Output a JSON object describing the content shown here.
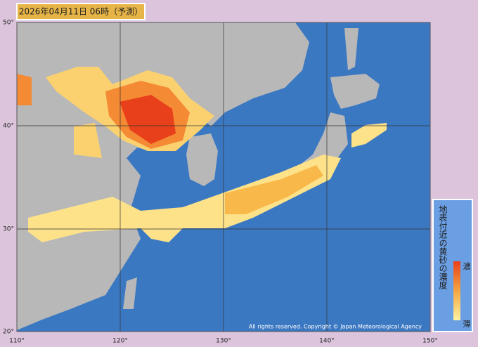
{
  "header": {
    "title": "2026年04月11日 06時（予測）"
  },
  "map": {
    "lat_labels": [
      "50°",
      "40°",
      "30°",
      "20°"
    ],
    "lon_labels": [
      "110°",
      "120°",
      "130°",
      "140°",
      "150°"
    ],
    "copyright": "All rights reserved. Copyright © Japan Meteorological Agency"
  },
  "legend": {
    "title": "地表付近の黄砂の濃度",
    "high": "濃",
    "low": "薄"
  }
}
